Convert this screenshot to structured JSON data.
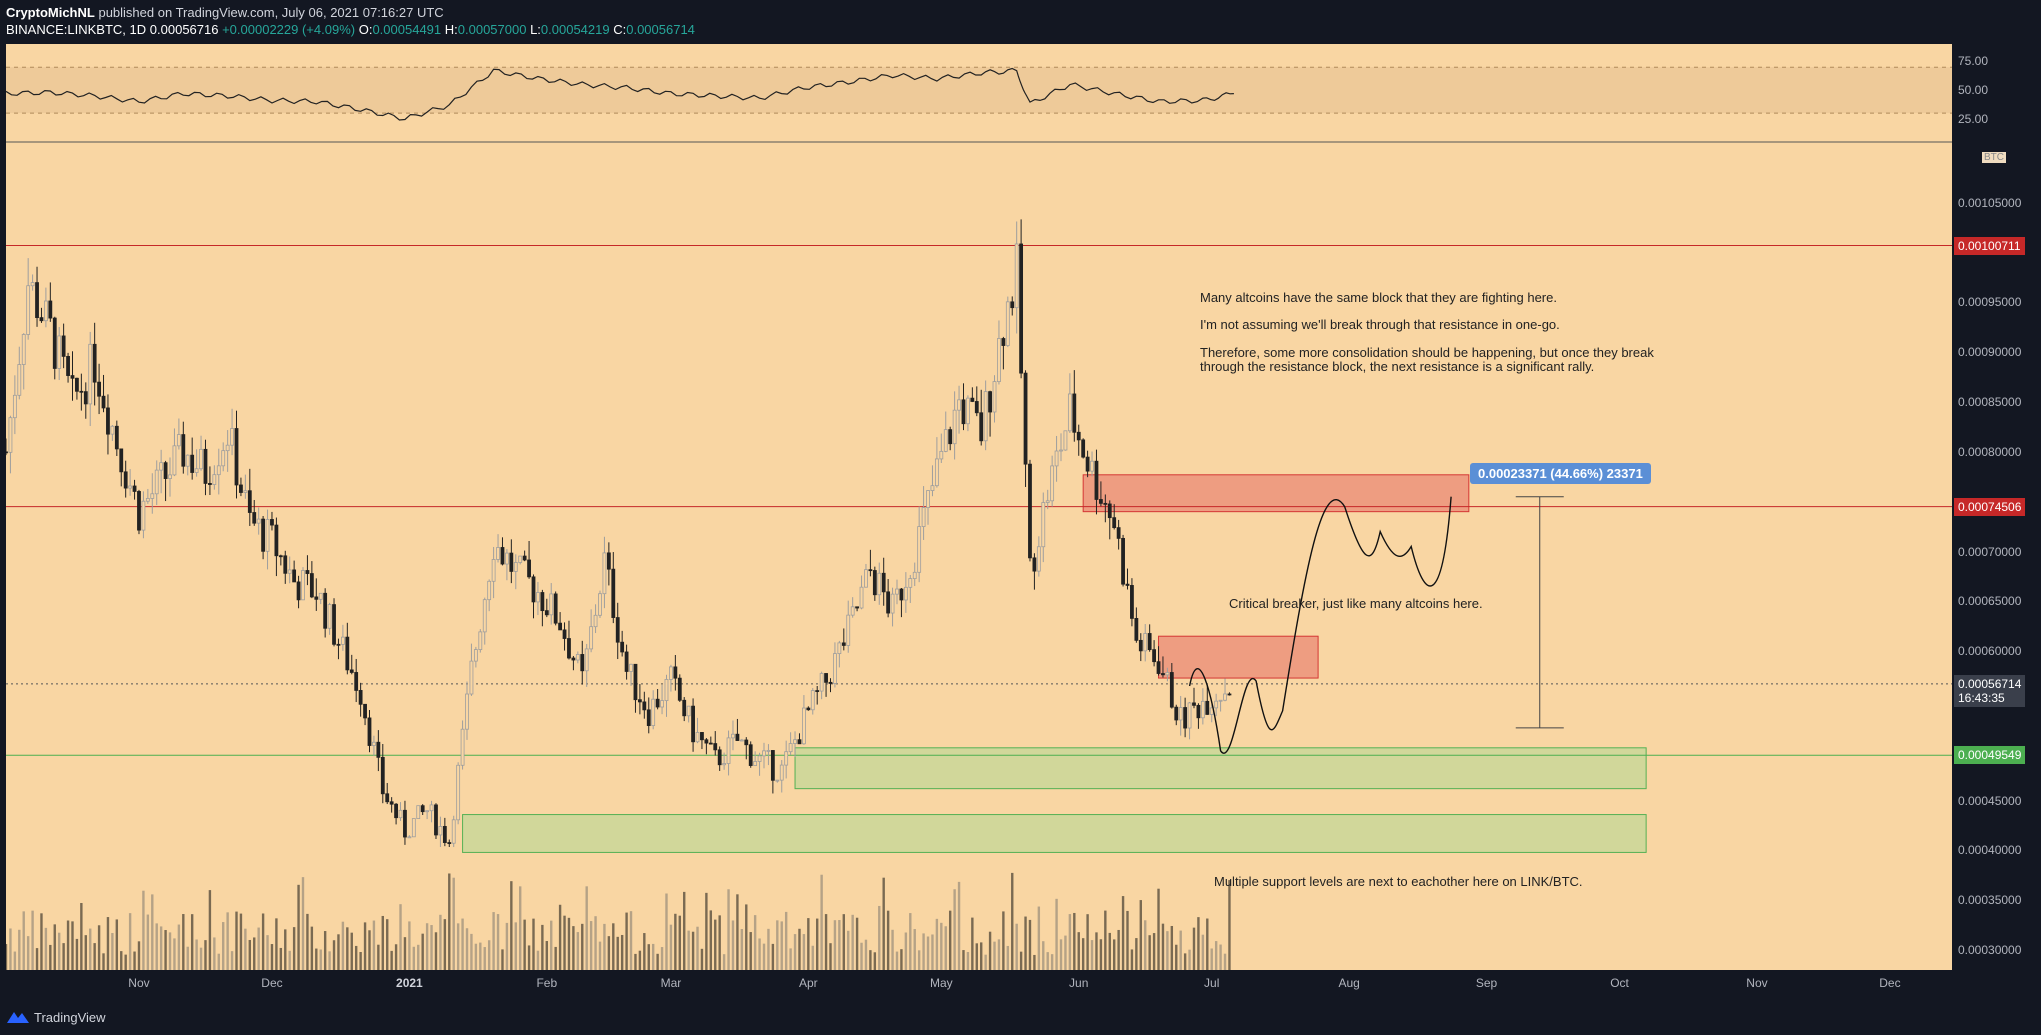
{
  "header": {
    "author": "CryptoMichNL",
    "published_text": "published on TradingView.com, July 06, 2021 07:16:27 UTC",
    "symbol": "BINANCE:LINKBTC, 1D",
    "last": "0.00056716",
    "change": "+0.00002229 (+4.09%)",
    "o_label": "O:",
    "o_value": "0.00054491",
    "h_label": "H:",
    "h_value": "0.00057000",
    "l_label": "L:",
    "l_value": "0.00054219",
    "c_label": "C:",
    "c_value": "0.00056714"
  },
  "price_scale": {
    "unit": "BTC",
    "ticks": [
      "0.00105000",
      "0.00095000",
      "0.00090000",
      "0.00085000",
      "0.00080000",
      "0.00070000",
      "0.00065000",
      "0.00060000",
      "0.00045000",
      "0.00040000",
      "0.00035000",
      "0.00030000"
    ],
    "tick_values": [
      0.00105,
      0.00095,
      0.0009,
      0.00085,
      0.0008,
      0.0007,
      0.00065,
      0.0006,
      0.00045,
      0.0004,
      0.00035,
      0.0003
    ]
  },
  "rsi_scale": {
    "ticks": [
      "75.00",
      "50.00",
      "25.00"
    ],
    "tick_values": [
      75,
      50,
      25
    ]
  },
  "badges": {
    "resistance_top": "0.00100711",
    "resistance_mid": "0.00074506",
    "current_price": "0.00056714",
    "countdown": "16:43:35",
    "support": "0.00049549"
  },
  "time_axis": {
    "labels": [
      {
        "text": "Nov",
        "bold": false
      },
      {
        "text": "Dec",
        "bold": false
      },
      {
        "text": "2021",
        "bold": true
      },
      {
        "text": "Feb",
        "bold": false
      },
      {
        "text": "Mar",
        "bold": false
      },
      {
        "text": "Apr",
        "bold": false
      },
      {
        "text": "May",
        "bold": false
      },
      {
        "text": "Jun",
        "bold": false
      },
      {
        "text": "Jul",
        "bold": false
      },
      {
        "text": "Aug",
        "bold": false
      },
      {
        "text": "Sep",
        "bold": false
      },
      {
        "text": "Oct",
        "bold": false
      },
      {
        "text": "Nov",
        "bold": false
      },
      {
        "text": "Dec",
        "bold": false
      }
    ]
  },
  "annotations": {
    "line1": "Many altcoins have the same block that they are fighting here.",
    "line2": "I'm not assuming we'll break through that resistance in one-go.",
    "line3a": "Therefore, some more consolidation should be happening, but once they break",
    "line3b": "through the resistance block, the next resistance is a significant rally.",
    "critical": "Critical breaker, just like many altcoins here.",
    "support_note": "Multiple support levels are next to eachother here on LINK/BTC.",
    "measure": "0.00023371 (44.66%) 23371"
  },
  "footer": {
    "brand": "TradingView"
  },
  "colors": {
    "background": "#f9d6a3",
    "resistance_line": "#c62828",
    "support_zone": "#a5d6a7",
    "resistance_zone": "#ef9a9a",
    "measure": "#5b8fd6"
  },
  "chart_data": {
    "type": "candlestick",
    "x_range": [
      "2020-10-02",
      "2021-12-15"
    ],
    "y_range": [
      0.00028,
      0.00111
    ],
    "horizontal_lines": [
      0.00100711,
      0.00074506
    ],
    "current_price": 0.00056714,
    "zones": [
      {
        "kind": "resistance",
        "from": "2021-06-02",
        "to": "2021-08-28",
        "low": 0.00074,
        "high": 0.000777
      },
      {
        "kind": "resistance",
        "from": "2021-06-19",
        "to": "2021-07-25",
        "low": 0.000573,
        "high": 0.000615
      },
      {
        "kind": "support",
        "from": "2021-03-29",
        "to": "2021-10-07",
        "low": 0.000462,
        "high": 0.000503
      },
      {
        "kind": "support",
        "from": "2021-01-13",
        "to": "2021-10-07",
        "low": 0.000398,
        "high": 0.000436
      }
    ],
    "close_series": [
      [
        "2020-10-02",
        0.0008
      ],
      [
        "2020-10-07",
        0.00097
      ],
      [
        "2020-10-12",
        0.00092
      ],
      [
        "2020-10-17",
        0.00085
      ],
      [
        "2020-10-22",
        0.00089
      ],
      [
        "2020-10-27",
        0.00081
      ],
      [
        "2020-11-01",
        0.00074
      ],
      [
        "2020-11-06",
        0.00077
      ],
      [
        "2020-11-11",
        0.0008
      ],
      [
        "2020-11-16",
        0.00078
      ],
      [
        "2020-11-21",
        0.00082
      ],
      [
        "2020-11-26",
        0.00073
      ],
      [
        "2020-12-01",
        0.00071
      ],
      [
        "2020-12-06",
        0.00067
      ],
      [
        "2020-12-11",
        0.00066
      ],
      [
        "2020-12-16",
        0.00061
      ],
      [
        "2020-12-21",
        0.00056
      ],
      [
        "2020-12-26",
        0.00046
      ],
      [
        "2020-12-31",
        0.00042
      ],
      [
        "2021-01-05",
        0.00044
      ],
      [
        "2021-01-10",
        0.00041
      ],
      [
        "2021-01-15",
        0.00058
      ],
      [
        "2021-01-20",
        0.00071
      ],
      [
        "2021-01-25",
        0.00068
      ],
      [
        "2021-01-30",
        0.00066
      ],
      [
        "2021-02-04",
        0.00063
      ],
      [
        "2021-02-09",
        0.00057
      ],
      [
        "2021-02-14",
        0.00069
      ],
      [
        "2021-02-19",
        0.00058
      ],
      [
        "2021-02-24",
        0.00054
      ],
      [
        "2021-03-01",
        0.00057
      ],
      [
        "2021-03-06",
        0.00052
      ],
      [
        "2021-03-11",
        0.00049
      ],
      [
        "2021-03-16",
        0.00051
      ],
      [
        "2021-03-21",
        0.00049
      ],
      [
        "2021-03-26",
        0.00048
      ],
      [
        "2021-03-31",
        0.00053
      ],
      [
        "2021-04-05",
        0.00057
      ],
      [
        "2021-04-10",
        0.00062
      ],
      [
        "2021-04-15",
        0.00068
      ],
      [
        "2021-04-20",
        0.00064
      ],
      [
        "2021-04-25",
        0.0007
      ],
      [
        "2021-04-30",
        0.00078
      ],
      [
        "2021-05-05",
        0.00085
      ],
      [
        "2021-05-10",
        0.00082
      ],
      [
        "2021-05-15",
        0.00093
      ],
      [
        "2021-05-18",
        0.00098
      ],
      [
        "2021-05-21",
        0.00068
      ],
      [
        "2021-05-25",
        0.00076
      ],
      [
        "2021-05-30",
        0.00084
      ],
      [
        "2021-06-04",
        0.00078
      ],
      [
        "2021-06-09",
        0.00073
      ],
      [
        "2021-06-14",
        0.00061
      ],
      [
        "2021-06-19",
        0.00059
      ],
      [
        "2021-06-24",
        0.00053
      ],
      [
        "2021-06-29",
        0.00055
      ],
      [
        "2021-07-06",
        0.00056714
      ]
    ],
    "rsi_series": [
      [
        "2020-10-02",
        47
      ],
      [
        "2020-10-12",
        48
      ],
      [
        "2020-10-22",
        45
      ],
      [
        "2020-11-01",
        40
      ],
      [
        "2020-11-11",
        47
      ],
      [
        "2020-11-21",
        45
      ],
      [
        "2020-12-01",
        41
      ],
      [
        "2020-12-11",
        40
      ],
      [
        "2020-12-21",
        33
      ],
      [
        "2020-12-31",
        25
      ],
      [
        "2021-01-10",
        37
      ],
      [
        "2021-01-20",
        67
      ],
      [
        "2021-01-30",
        60
      ],
      [
        "2021-02-09",
        55
      ],
      [
        "2021-02-19",
        52
      ],
      [
        "2021-03-01",
        47
      ],
      [
        "2021-03-11",
        45
      ],
      [
        "2021-03-21",
        43
      ],
      [
        "2021-03-31",
        52
      ],
      [
        "2021-04-10",
        57
      ],
      [
        "2021-04-20",
        63
      ],
      [
        "2021-04-30",
        60
      ],
      [
        "2021-05-10",
        65
      ],
      [
        "2021-05-18",
        67
      ],
      [
        "2021-05-21",
        38
      ],
      [
        "2021-05-30",
        55
      ],
      [
        "2021-06-09",
        47
      ],
      [
        "2021-06-19",
        40
      ],
      [
        "2021-06-29",
        41
      ],
      [
        "2021-07-06",
        47
      ]
    ]
  }
}
